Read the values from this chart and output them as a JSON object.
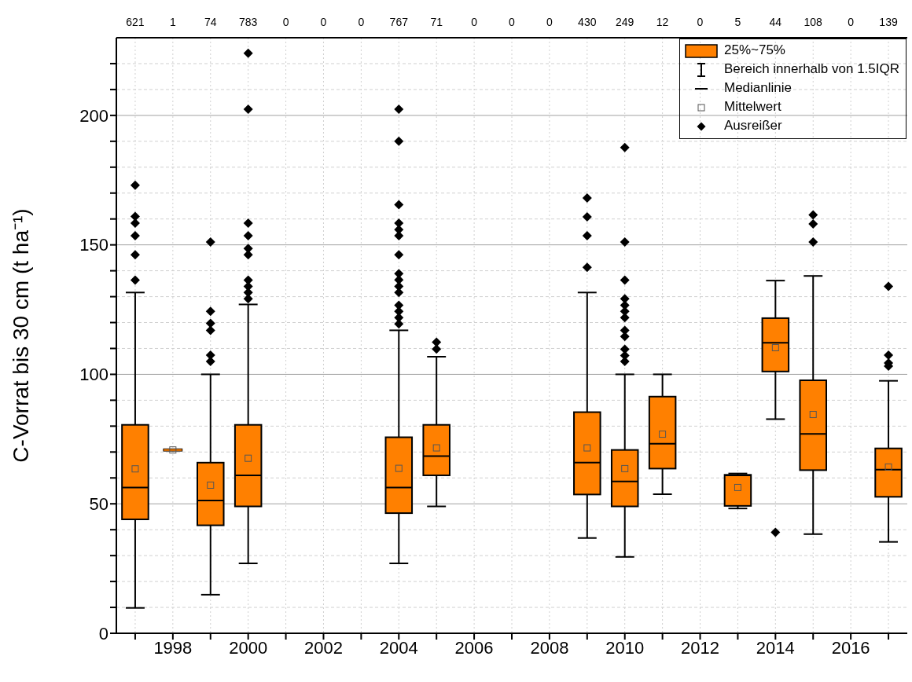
{
  "chart_data": {
    "type": "box",
    "ylabel": "C-Vorrat bis 30 cm (t ha⁻¹)",
    "x": [
      1997,
      1998,
      1999,
      2000,
      2004,
      2005,
      2009,
      2010,
      2011,
      2013,
      2014,
      2015,
      2017
    ],
    "xlim": [
      1996.5,
      2017.5
    ],
    "xticks": [
      {
        "value": 1997,
        "label": null
      },
      1998,
      {
        "value": 1999,
        "label": null
      },
      2000,
      {
        "value": 2001,
        "label": null
      },
      2002,
      {
        "value": 2003,
        "label": null
      },
      2004,
      {
        "value": 2005,
        "label": null
      },
      2006,
      {
        "value": 2007,
        "label": null
      },
      2008,
      {
        "value": 2009,
        "label": null
      },
      2010,
      {
        "value": 2011,
        "label": null
      },
      2012,
      {
        "value": 2013,
        "label": null
      },
      2014,
      {
        "value": 2015,
        "label": null
      },
      2016,
      {
        "value": 2017,
        "label": null
      }
    ],
    "ylim": [
      0,
      230
    ],
    "yticks": [
      0,
      {
        "value": 10,
        "label": null
      },
      {
        "value": 20,
        "label": null
      },
      {
        "value": 30,
        "label": null
      },
      {
        "value": 40,
        "label": null
      },
      50,
      {
        "value": 60,
        "label": null
      },
      {
        "value": 70,
        "label": null
      },
      {
        "value": 80,
        "label": null
      },
      {
        "value": 90,
        "label": null
      },
      100,
      {
        "value": 110,
        "label": null
      },
      {
        "value": 120,
        "label": null
      },
      {
        "value": 130,
        "label": null
      },
      {
        "value": 140,
        "label": null
      },
      150,
      {
        "value": 160,
        "label": null
      },
      {
        "value": 170,
        "label": null
      },
      {
        "value": 180,
        "label": null
      },
      {
        "value": 190,
        "label": null
      },
      200,
      {
        "value": 210,
        "label": null
      },
      {
        "value": 220,
        "label": null
      }
    ],
    "grid": true,
    "legend": "top right",
    "marker": "diamond",
    "series": [
      {
        "name": "25%~75%",
        "color": "#ff8000",
        "boxes": [
          {
            "low": 9.8,
            "q1": 44,
            "median": 56.3,
            "q3": 80.5,
            "high": 131.6,
            "mean": 63.5,
            "outliers": [
              136.4,
              146.2,
              153.5,
              158.4,
              161,
              173
            ]
          },
          {
            "low": 70.8,
            "q1": 70.8,
            "median": 70.8,
            "q3": 70.8,
            "high": 70.8,
            "mean": 70.8
          },
          {
            "low": 14.9,
            "q1": 41.7,
            "median": 51.3,
            "q3": 65.9,
            "high": 100,
            "mean": 57.2,
            "outliers": [
              105,
              107.4,
              117,
              119.7,
              124.3,
              151.1
            ]
          },
          {
            "low": 27,
            "q1": 49,
            "median": 61,
            "q3": 80.5,
            "high": 127,
            "mean": 67.6,
            "outliers": [
              129.2,
              131.6,
              134,
              136.4,
              146.2,
              148.6,
              153.5,
              158.4,
              202.4,
              224
            ]
          },
          {
            "low": 27,
            "q1": 46.4,
            "median": 56.3,
            "q3": 75.7,
            "high": 117,
            "mean": 63.7,
            "outliers": [
              119.5,
              121.9,
              124.3,
              126.7,
              131.6,
              134,
              136.5,
              138.9,
              146.2,
              153.5,
              155.9,
              158.4,
              165.5,
              190,
              202.4
            ]
          },
          {
            "low": 49,
            "q1": 61,
            "median": 68.4,
            "q3": 80.5,
            "high": 106.8,
            "mean": 71.6,
            "outliers": [
              109.8,
              112.4
            ]
          },
          {
            "low": 36.8,
            "q1": 53.6,
            "median": 65.9,
            "q3": 85.4,
            "high": 131.6,
            "mean": 71.6,
            "outliers": [
              141.3,
              153.5,
              160.8,
              168.1
            ]
          },
          {
            "low": 29.5,
            "q1": 49,
            "median": 58.6,
            "q3": 70.8,
            "high": 100,
            "mean": 63.6,
            "outliers": [
              105,
              107.3,
              109.7,
              114.6,
              117,
              121.9,
              124.3,
              126.7,
              129.2,
              136.4,
              151.1,
              187.6
            ]
          },
          {
            "low": 53.7,
            "q1": 63.6,
            "median": 73.2,
            "q3": 91.4,
            "high": 100,
            "mean": 76.9
          },
          {
            "low": 48.2,
            "q1": 49.2,
            "median": 61,
            "q3": 61.2,
            "high": 61.7,
            "mean": 56.3
          },
          {
            "low": 82.7,
            "q1": 101.1,
            "median": 112.2,
            "q3": 121.7,
            "high": 136.2,
            "mean": 110.3,
            "outliers": [
              39
            ]
          },
          {
            "low": 38.3,
            "q1": 63,
            "median": 77,
            "q3": 97.7,
            "high": 138,
            "mean": 84.5,
            "outliers": [
              151.1,
              158.1,
              161.6
            ]
          },
          {
            "low": 35.3,
            "q1": 52.7,
            "median": 63.2,
            "q3": 71.4,
            "high": 97.5,
            "mean": 64.2,
            "outliers": [
              103.2,
              104.4,
              107.4,
              134
            ]
          }
        ]
      }
    ],
    "annotations": [
      "Bereich innerhalb von 1.5IQR",
      "Medianlinie",
      "Mittelwert",
      "Ausreißer",
      "621",
      "1",
      "74",
      "783",
      "0",
      "0",
      "0",
      "767",
      "71",
      "0",
      "0",
      "0",
      "430",
      "249",
      "12",
      "0",
      "5",
      "44",
      "108",
      "0",
      "139"
    ]
  }
}
